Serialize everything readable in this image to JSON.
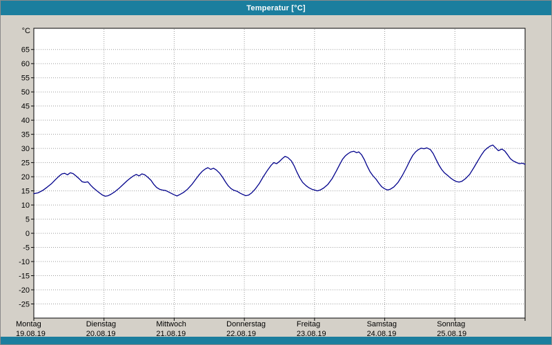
{
  "window": {
    "title": "Temperatur [°C]",
    "titlebar_color": "#1b7e9e",
    "background_color": "#d4d0c8"
  },
  "chart_data": {
    "type": "line",
    "title": "Temperatur [°C]",
    "y_unit": "°C",
    "ylabel": "Temperatur",
    "xlabel": "",
    "ylim": [
      -25,
      65
    ],
    "ylim_draw": [
      -30,
      72.5
    ],
    "ytick_step": 5,
    "yticks": [
      65,
      60,
      55,
      50,
      45,
      40,
      35,
      30,
      25,
      20,
      15,
      10,
      5,
      0,
      -5,
      -10,
      -15,
      -20,
      -25
    ],
    "grid": true,
    "grid_color": "#9a9a9a",
    "plot_background": "#ffffff",
    "x_days": [
      {
        "day": "Montag",
        "date": "19.08.19"
      },
      {
        "day": "Dienstag",
        "date": "20.08.19"
      },
      {
        "day": "Mittwoch",
        "date": "21.08.19"
      },
      {
        "day": "Donnerstag",
        "date": "22.08.19"
      },
      {
        "day": "Freitag",
        "date": "23.08.19"
      },
      {
        "day": "Samstag",
        "date": "24.08.19"
      },
      {
        "day": "Sonntag",
        "date": "25.08.19"
      }
    ],
    "series": [
      {
        "name": "Temperatur",
        "color": "#00008b",
        "points": [
          [
            0.0,
            14.0
          ],
          [
            0.06,
            14.3
          ],
          [
            0.13,
            15.2
          ],
          [
            0.19,
            16.3
          ],
          [
            0.25,
            17.5
          ],
          [
            0.31,
            19.0
          ],
          [
            0.36,
            20.2
          ],
          [
            0.4,
            21.0
          ],
          [
            0.44,
            21.2
          ],
          [
            0.48,
            20.7
          ],
          [
            0.52,
            21.4
          ],
          [
            0.56,
            21.1
          ],
          [
            0.6,
            20.3
          ],
          [
            0.65,
            19.2
          ],
          [
            0.69,
            18.2
          ],
          [
            0.73,
            18.0
          ],
          [
            0.77,
            18.2
          ],
          [
            0.81,
            17.0
          ],
          [
            0.85,
            16.0
          ],
          [
            0.9,
            15.0
          ],
          [
            0.94,
            14.2
          ],
          [
            0.98,
            13.5
          ],
          [
            1.02,
            13.1
          ],
          [
            1.06,
            13.3
          ],
          [
            1.1,
            13.8
          ],
          [
            1.15,
            14.6
          ],
          [
            1.21,
            15.8
          ],
          [
            1.27,
            17.2
          ],
          [
            1.33,
            18.6
          ],
          [
            1.38,
            19.6
          ],
          [
            1.42,
            20.3
          ],
          [
            1.46,
            20.8
          ],
          [
            1.5,
            20.3
          ],
          [
            1.54,
            21.0
          ],
          [
            1.58,
            20.7
          ],
          [
            1.62,
            19.9
          ],
          [
            1.67,
            18.7
          ],
          [
            1.71,
            17.3
          ],
          [
            1.75,
            16.2
          ],
          [
            1.79,
            15.6
          ],
          [
            1.83,
            15.3
          ],
          [
            1.88,
            15.1
          ],
          [
            1.92,
            14.6
          ],
          [
            1.96,
            14.1
          ],
          [
            2.0,
            13.6
          ],
          [
            2.04,
            13.2
          ],
          [
            2.08,
            13.7
          ],
          [
            2.13,
            14.4
          ],
          [
            2.19,
            15.6
          ],
          [
            2.25,
            17.2
          ],
          [
            2.31,
            19.2
          ],
          [
            2.36,
            20.8
          ],
          [
            2.4,
            21.9
          ],
          [
            2.44,
            22.7
          ],
          [
            2.48,
            23.2
          ],
          [
            2.52,
            22.6
          ],
          [
            2.56,
            23.0
          ],
          [
            2.6,
            22.4
          ],
          [
            2.65,
            21.2
          ],
          [
            2.69,
            19.8
          ],
          [
            2.73,
            18.2
          ],
          [
            2.77,
            16.8
          ],
          [
            2.81,
            15.8
          ],
          [
            2.85,
            15.2
          ],
          [
            2.9,
            14.8
          ],
          [
            2.94,
            14.2
          ],
          [
            2.98,
            13.7
          ],
          [
            3.02,
            13.3
          ],
          [
            3.06,
            13.5
          ],
          [
            3.1,
            14.2
          ],
          [
            3.15,
            15.5
          ],
          [
            3.21,
            17.5
          ],
          [
            3.27,
            20.0
          ],
          [
            3.33,
            22.3
          ],
          [
            3.38,
            24.0
          ],
          [
            3.42,
            25.0
          ],
          [
            3.46,
            24.6
          ],
          [
            3.5,
            25.4
          ],
          [
            3.54,
            26.4
          ],
          [
            3.58,
            27.2
          ],
          [
            3.62,
            26.8
          ],
          [
            3.67,
            25.6
          ],
          [
            3.71,
            23.8
          ],
          [
            3.75,
            21.6
          ],
          [
            3.79,
            19.6
          ],
          [
            3.83,
            18.0
          ],
          [
            3.88,
            16.8
          ],
          [
            3.92,
            16.1
          ],
          [
            3.96,
            15.6
          ],
          [
            4.0,
            15.3
          ],
          [
            4.04,
            15.0
          ],
          [
            4.08,
            15.3
          ],
          [
            4.13,
            16.0
          ],
          [
            4.19,
            17.3
          ],
          [
            4.25,
            19.3
          ],
          [
            4.31,
            22.0
          ],
          [
            4.36,
            24.4
          ],
          [
            4.4,
            26.2
          ],
          [
            4.44,
            27.4
          ],
          [
            4.48,
            28.2
          ],
          [
            4.52,
            28.8
          ],
          [
            4.56,
            29.0
          ],
          [
            4.6,
            28.5
          ],
          [
            4.63,
            28.8
          ],
          [
            4.67,
            27.8
          ],
          [
            4.71,
            26.0
          ],
          [
            4.75,
            23.8
          ],
          [
            4.79,
            21.8
          ],
          [
            4.83,
            20.4
          ],
          [
            4.88,
            19.0
          ],
          [
            4.92,
            17.6
          ],
          [
            4.96,
            16.4
          ],
          [
            5.0,
            15.7
          ],
          [
            5.04,
            15.3
          ],
          [
            5.08,
            15.6
          ],
          [
            5.13,
            16.4
          ],
          [
            5.19,
            18.0
          ],
          [
            5.25,
            20.4
          ],
          [
            5.31,
            23.2
          ],
          [
            5.36,
            25.8
          ],
          [
            5.4,
            27.6
          ],
          [
            5.44,
            28.8
          ],
          [
            5.48,
            29.6
          ],
          [
            5.52,
            30.1
          ],
          [
            5.56,
            29.9
          ],
          [
            5.6,
            30.2
          ],
          [
            5.65,
            29.6
          ],
          [
            5.69,
            28.2
          ],
          [
            5.73,
            26.2
          ],
          [
            5.77,
            24.2
          ],
          [
            5.81,
            22.6
          ],
          [
            5.85,
            21.4
          ],
          [
            5.9,
            20.4
          ],
          [
            5.94,
            19.5
          ],
          [
            5.98,
            18.8
          ],
          [
            6.02,
            18.3
          ],
          [
            6.06,
            18.1
          ],
          [
            6.1,
            18.4
          ],
          [
            6.15,
            19.3
          ],
          [
            6.21,
            20.8
          ],
          [
            6.27,
            23.2
          ],
          [
            6.33,
            25.8
          ],
          [
            6.38,
            27.8
          ],
          [
            6.42,
            29.2
          ],
          [
            6.46,
            30.1
          ],
          [
            6.5,
            30.8
          ],
          [
            6.54,
            31.2
          ],
          [
            6.58,
            30.2
          ],
          [
            6.62,
            29.2
          ],
          [
            6.67,
            29.8
          ],
          [
            6.71,
            29.1
          ],
          [
            6.75,
            27.8
          ],
          [
            6.79,
            26.4
          ],
          [
            6.83,
            25.6
          ],
          [
            6.88,
            25.0
          ],
          [
            6.92,
            24.6
          ],
          [
            6.96,
            24.8
          ],
          [
            7.0,
            24.4
          ]
        ]
      }
    ],
    "legend": "none"
  }
}
